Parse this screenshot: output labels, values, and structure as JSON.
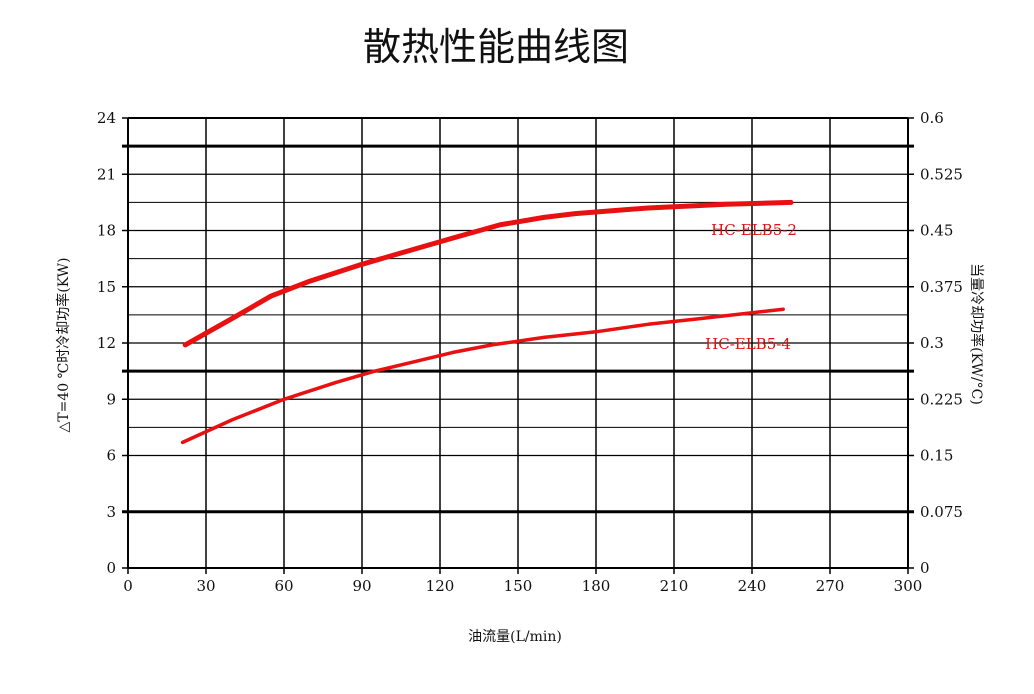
{
  "chart_data": {
    "type": "line",
    "title": "散热性能曲线图",
    "xlabel": "油流量(L/min)",
    "ylabel": "△T=40 ℃时冷却功率(KW)",
    "y2label": "当量冷却功率(KW/°C)",
    "xlim": [
      0,
      300
    ],
    "ylim": [
      0,
      24
    ],
    "y2lim": [
      0,
      0.6
    ],
    "x_ticks": [
      0,
      30,
      60,
      90,
      120,
      150,
      180,
      210,
      240,
      270,
      300
    ],
    "x_tick_labels": [
      "0",
      "30",
      "60",
      "90",
      "120",
      "150",
      "180",
      "210",
      "240",
      "270",
      "300"
    ],
    "y_ticks": [
      0,
      3,
      6,
      9,
      12,
      15,
      18,
      21,
      24
    ],
    "y_tick_labels": [
      "0",
      "3",
      "6",
      "9",
      "12",
      "15",
      "18",
      "21",
      "24"
    ],
    "y2_ticks": [
      0,
      0.075,
      0.15,
      0.225,
      0.3,
      0.375,
      0.45,
      0.525,
      0.6
    ],
    "y2_tick_labels": [
      "0",
      "0.075",
      "0.15",
      "0.225",
      "0.3",
      "0.375",
      "0.45",
      "0.525",
      "0.6"
    ],
    "bold_gridlines_y": [
      3,
      10.5,
      22.5
    ],
    "minor_gridlines_y": [
      7.5,
      13.5,
      16.5,
      19.5
    ],
    "grid": true,
    "series": [
      {
        "name": "HC-ELB5-2",
        "color": "#e81010",
        "x": [
          22,
          40,
          55,
          70,
          90,
          105,
          125,
          143,
          160,
          172,
          200,
          230,
          255
        ],
        "y": [
          11.9,
          13.3,
          14.5,
          15.3,
          16.2,
          16.8,
          17.6,
          18.3,
          18.7,
          18.9,
          19.2,
          19.4,
          19.5
        ]
      },
      {
        "name": "HC-ELB5-4",
        "color": "#e81010",
        "x": [
          21,
          40,
          60,
          80,
          95,
          110,
          125,
          140,
          160,
          180,
          200,
          220,
          252
        ],
        "y": [
          6.7,
          7.9,
          9.0,
          9.9,
          10.5,
          11.0,
          11.5,
          11.9,
          12.3,
          12.6,
          13.0,
          13.3,
          13.8
        ]
      }
    ]
  }
}
